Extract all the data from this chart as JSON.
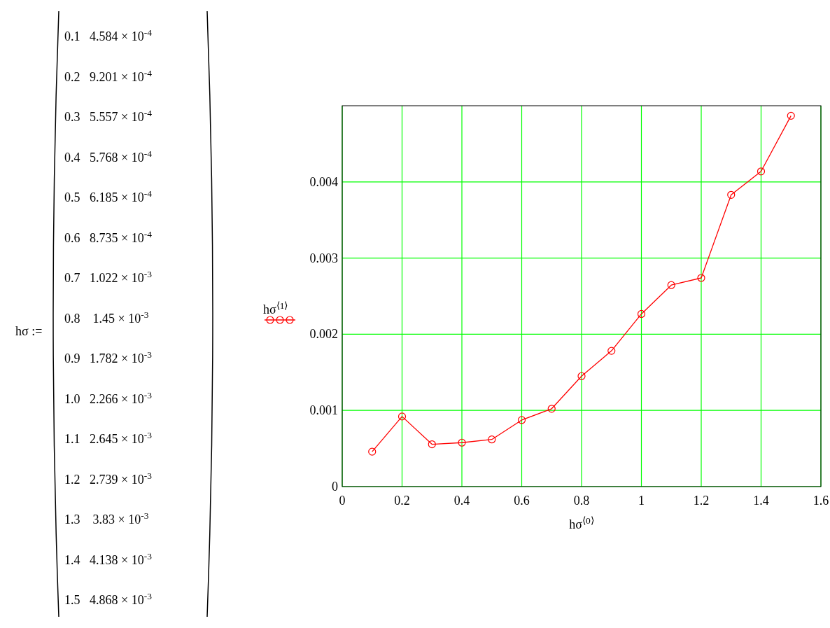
{
  "chart_data": {
    "type": "line",
    "xlabel": "hσ$^{⟨0⟩}$",
    "ylabel": "hσ$^{⟨1⟩}$",
    "annotations": [
      "hσ :=",
      "0.1   4.584 × 10$^{-4}$",
      "0.2   9.201 × 10$^{-4}$",
      "0.3   5.557 × 10$^{-4}$",
      "0.4   5.768 × 10$^{-4}$",
      "0.5   6.185 × 10$^{-4}$",
      "0.6   8.735 × 10$^{-4}$",
      "0.7   1.022 × 10$^{-3}$",
      "0.8    1.45 × 10$^{-3}$",
      "0.9   1.782 × 10$^{-3}$",
      "1.0   2.266 × 10$^{-3}$",
      "1.1   2.645 × 10$^{-3}$",
      "1.2   2.739 × 10$^{-3}$",
      "1.3    3.83 × 10$^{-3}$",
      "1.4   4.138 × 10$^{-3}$",
      "1.5   4.868 × 10$^{-3}$"
    ],
    "x": [
      0.1,
      0.2,
      0.3,
      0.4,
      0.5,
      0.6,
      0.7,
      0.8,
      0.9,
      1.0,
      1.1,
      1.2,
      1.3,
      1.4,
      1.5
    ],
    "series": [
      {
        "color": "#ff0000",
        "values": [
          0.0004584,
          0.0009201,
          0.0005557,
          0.0005768,
          0.0006185,
          0.0008735,
          0.001022,
          0.00145,
          0.001782,
          0.002266,
          0.002645,
          0.002739,
          0.00383,
          0.004138,
          0.004868
        ]
      }
    ],
    "xlim": [
      0,
      1.6
    ],
    "xticks": [
      0,
      0.2,
      0.4,
      0.6,
      0.8,
      1,
      1.2,
      1.4,
      1.6
    ],
    "ylim": [
      0,
      0.005
    ],
    "yticks": [
      0,
      0.001,
      0.002,
      0.003,
      0.004
    ],
    "grid": true,
    "marker": "circle",
    "line_style": "solid"
  }
}
